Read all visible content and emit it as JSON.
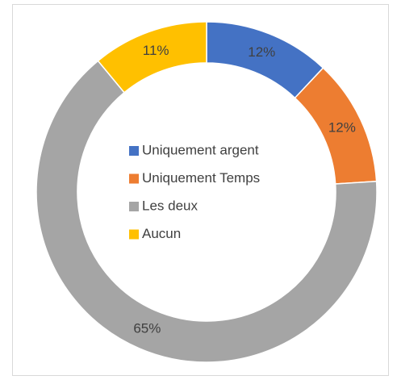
{
  "chart_data": {
    "type": "donut",
    "categories": [
      "Uniquement argent",
      "Uniquement Temps",
      "Les deux",
      "Aucun"
    ],
    "values": [
      12,
      12,
      65,
      11
    ],
    "value_labels": [
      "12%",
      "12%",
      "65%",
      "11%"
    ],
    "colors": [
      "#4472c4",
      "#ed7d31",
      "#a5a5a5",
      "#ffc000"
    ],
    "legend": "center"
  }
}
